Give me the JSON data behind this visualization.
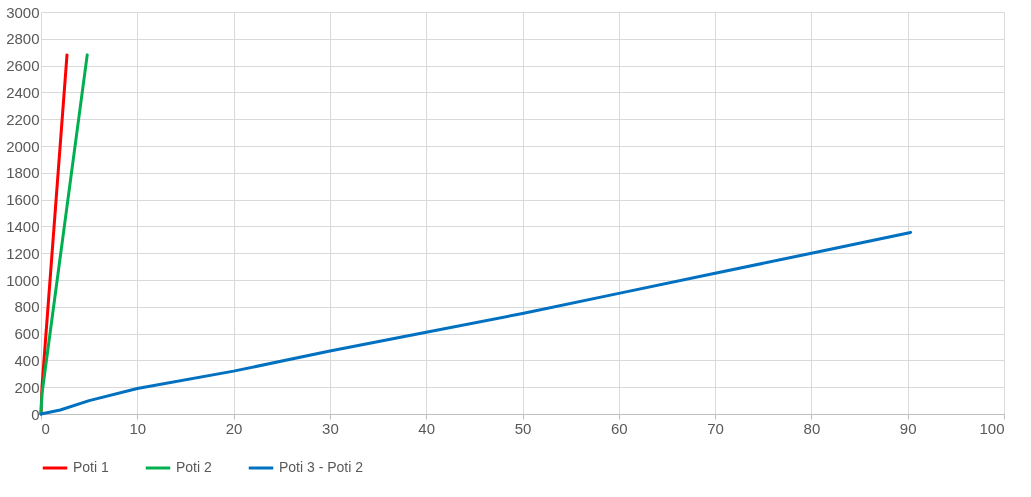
{
  "chart_data": {
    "type": "line",
    "xlim": [
      0,
      100
    ],
    "xticks": [
      0,
      10,
      20,
      30,
      40,
      50,
      60,
      70,
      80,
      90,
      100
    ],
    "ylim": [
      0,
      3000
    ],
    "yticks": [
      0,
      200,
      400,
      600,
      800,
      1000,
      1200,
      1400,
      1600,
      1800,
      2000,
      2200,
      2400,
      2600,
      2800,
      3000
    ],
    "grid": true,
    "legend": "bottom",
    "line_style": "solid",
    "series": [
      {
        "name": "Poti 1",
        "color": "#ff0000",
        "x": [
          0,
          0.1,
          2.7
        ],
        "values": [
          0,
          200,
          2680
        ]
      },
      {
        "name": "Poti 2",
        "color": "#00b050",
        "x": [
          0,
          0.1,
          4.8
        ],
        "values": [
          0,
          150,
          2680
        ]
      },
      {
        "name": "Poti 3 - Poti 2",
        "color": "#0070c0",
        "x": [
          0,
          2,
          5,
          10,
          20,
          30,
          40,
          50,
          60,
          70,
          80,
          90.3
        ],
        "values": [
          0,
          30,
          100,
          190,
          320,
          470,
          610,
          750,
          900,
          1050,
          1200,
          1355
        ]
      }
    ]
  }
}
